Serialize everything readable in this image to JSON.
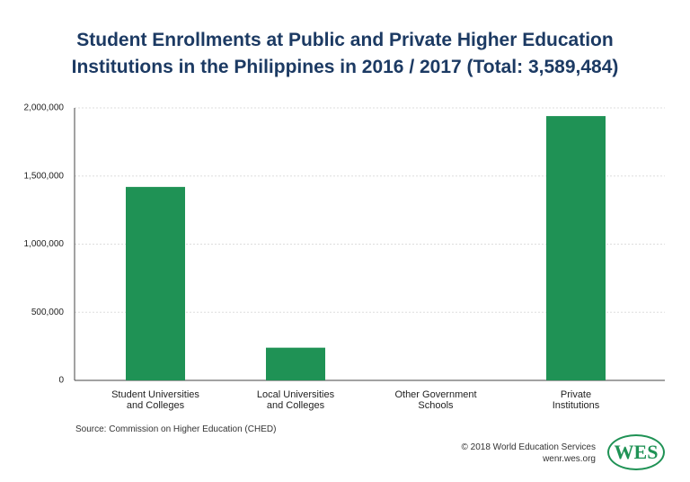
{
  "chart_data": {
    "type": "bar",
    "title": "Student Enrollments at Public and Private Higher Education\nInstitutions in the Philippines in 2016 / 2017 (Total: 3,589,484)",
    "categories": [
      "Student Universities\nand Colleges",
      "Local Universities\nand Colleges",
      "Other Government\nSchools",
      "Private\nInstitutions"
    ],
    "values": [
      1420000,
      240000,
      0,
      1940000
    ],
    "color": "#1f9255",
    "ylim": [
      0,
      2000000
    ],
    "yticks": [
      0,
      {
        "value": 500000,
        "label": "500,000"
      },
      {
        "value": 1000000,
        "label": "1,000,000"
      },
      {
        "value": 1500000,
        "label": "1,500,000"
      },
      {
        "value": 2000000,
        "label": "2,000,000"
      }
    ],
    "grid": true,
    "source": "Source: Commission on Higher Education (CHED)"
  },
  "footer": {
    "copyright": "© 2018 World Education Services",
    "url": "wenr.wes.org",
    "logo": "WES"
  }
}
